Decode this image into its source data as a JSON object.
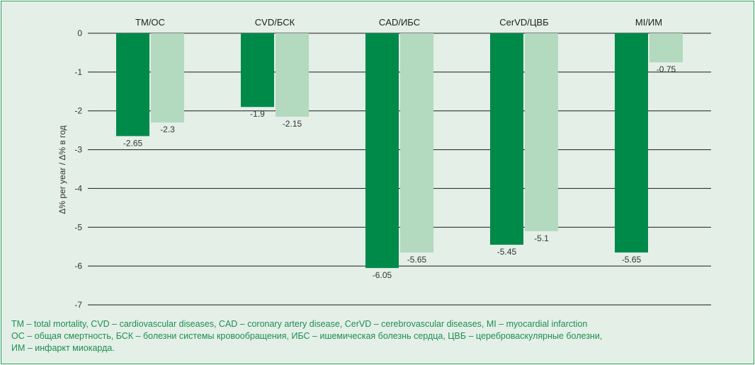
{
  "chart_data": {
    "type": "bar",
    "categories": [
      "TM/OC",
      "CVD/БСК",
      "CAD/ИБС",
      "CerVD/ЦВБ",
      "MI/ИМ"
    ],
    "series": [
      {
        "values": [
          -2.65,
          -1.9,
          -6.05,
          -5.45,
          -5.65
        ]
      },
      {
        "values": [
          -2.3,
          -2.15,
          -5.65,
          -5.1,
          -0.75
        ]
      }
    ],
    "value_labels": [
      [
        "-2.65",
        "-1.9",
        "-6.05",
        "-5.45",
        "-5.65"
      ],
      [
        "-2.3",
        "-2.15",
        "-5.65",
        "-5.1",
        "-0.75"
      ]
    ],
    "ylabel": "Δ% per year / Δ% в год",
    "ylim": [
      -7,
      0
    ],
    "yticks": [
      0,
      -1,
      -2,
      -3,
      -4,
      -5,
      -6,
      -7
    ],
    "grid": true,
    "category_labels_position": "top",
    "colors": {
      "series1": "#008a4a",
      "series2": "#b3d9be",
      "grid": "#1a1a1a",
      "border": "#2e9e5b",
      "background": "#e4efe8",
      "footnote": "#1e8f4e"
    }
  },
  "footnotes": [
    "TM – total mortality, CVD – cardiovascular diseases, CAD – coronary artery disease, CerVD – cerebrovascular diseases, MI – myocardial infarction",
    "ОС – общая смертность, БСК – болезни системы кровообращения, ИБС – ишемическая болезнь сердца, ЦВБ – цереброваскулярные болезни,",
    "ИМ – инфаркт миокарда."
  ]
}
